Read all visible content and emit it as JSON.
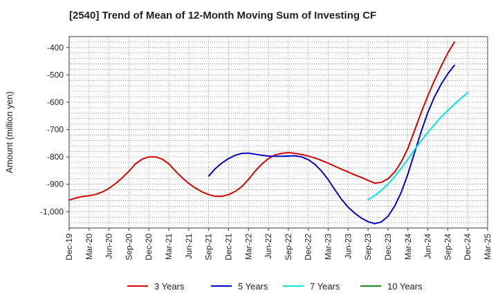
{
  "chart_data": {
    "type": "line",
    "title": "[2540]  Trend of Mean of 12-Month Moving Sum of Investing CF",
    "xlabel": "",
    "ylabel": "Amount (million yen)",
    "ylim": [
      -1060,
      -360
    ],
    "yticks": [
      -400,
      -500,
      -600,
      -700,
      -800,
      -900,
      -1000
    ],
    "ytick_labels": [
      "-400",
      "-500",
      "-600",
      "-700",
      "-800",
      "-900",
      "-1,000"
    ],
    "x_tick_labels": [
      "Dec-19",
      "Mar-20",
      "Jun-20",
      "Sep-20",
      "Dec-20",
      "Mar-21",
      "Jun-21",
      "Sep-21",
      "Dec-21",
      "Mar-22",
      "Jun-22",
      "Sep-22",
      "Dec-22",
      "Mar-23",
      "Jun-23",
      "Sep-23",
      "Dec-23",
      "Mar-24",
      "Jun-24",
      "Sep-24",
      "Dec-24",
      "Mar-25"
    ],
    "x_start": "Dec-19",
    "x_range_months": 63,
    "grid": true,
    "legend_position": "bottom",
    "series": [
      {
        "name": "3 Years",
        "color": "#dd0000",
        "start_month_index": 0,
        "values": [
          -958,
          -950,
          -945,
          -942,
          -937,
          -928,
          -915,
          -897,
          -876,
          -852,
          -825,
          -808,
          -800,
          -800,
          -808,
          -825,
          -852,
          -876,
          -897,
          -914,
          -928,
          -938,
          -944,
          -944,
          -938,
          -926,
          -908,
          -882,
          -852,
          -826,
          -806,
          -793,
          -787,
          -784,
          -787,
          -791,
          -797,
          -804,
          -813,
          -823,
          -834,
          -845,
          -855,
          -866,
          -875,
          -886,
          -896,
          -893,
          -880,
          -855,
          -818,
          -768,
          -703,
          -637,
          -576,
          -520,
          -468,
          -420,
          -380
        ]
      },
      {
        "name": "5 Years",
        "color": "#0000cc",
        "start_month_index": 21,
        "values": [
          -870,
          -843,
          -822,
          -806,
          -794,
          -787,
          -786,
          -790,
          -794,
          -797,
          -798,
          -798,
          -797,
          -796,
          -800,
          -810,
          -827,
          -852,
          -883,
          -920,
          -955,
          -984,
          -1006,
          -1024,
          -1037,
          -1044,
          -1038,
          -1017,
          -980,
          -929,
          -862,
          -784,
          -707,
          -637,
          -580,
          -534,
          -496,
          -465
        ]
      },
      {
        "name": "7 Years",
        "color": "#00e5e5",
        "start_month_index": 45,
        "values": [
          -957,
          -941,
          -922,
          -899,
          -872,
          -841,
          -808,
          -773,
          -741,
          -710,
          -681,
          -654,
          -630,
          -607,
          -585,
          -565
        ]
      },
      {
        "name": "10 Years",
        "color": "#228822",
        "start_month_index": 0,
        "values": []
      }
    ]
  }
}
